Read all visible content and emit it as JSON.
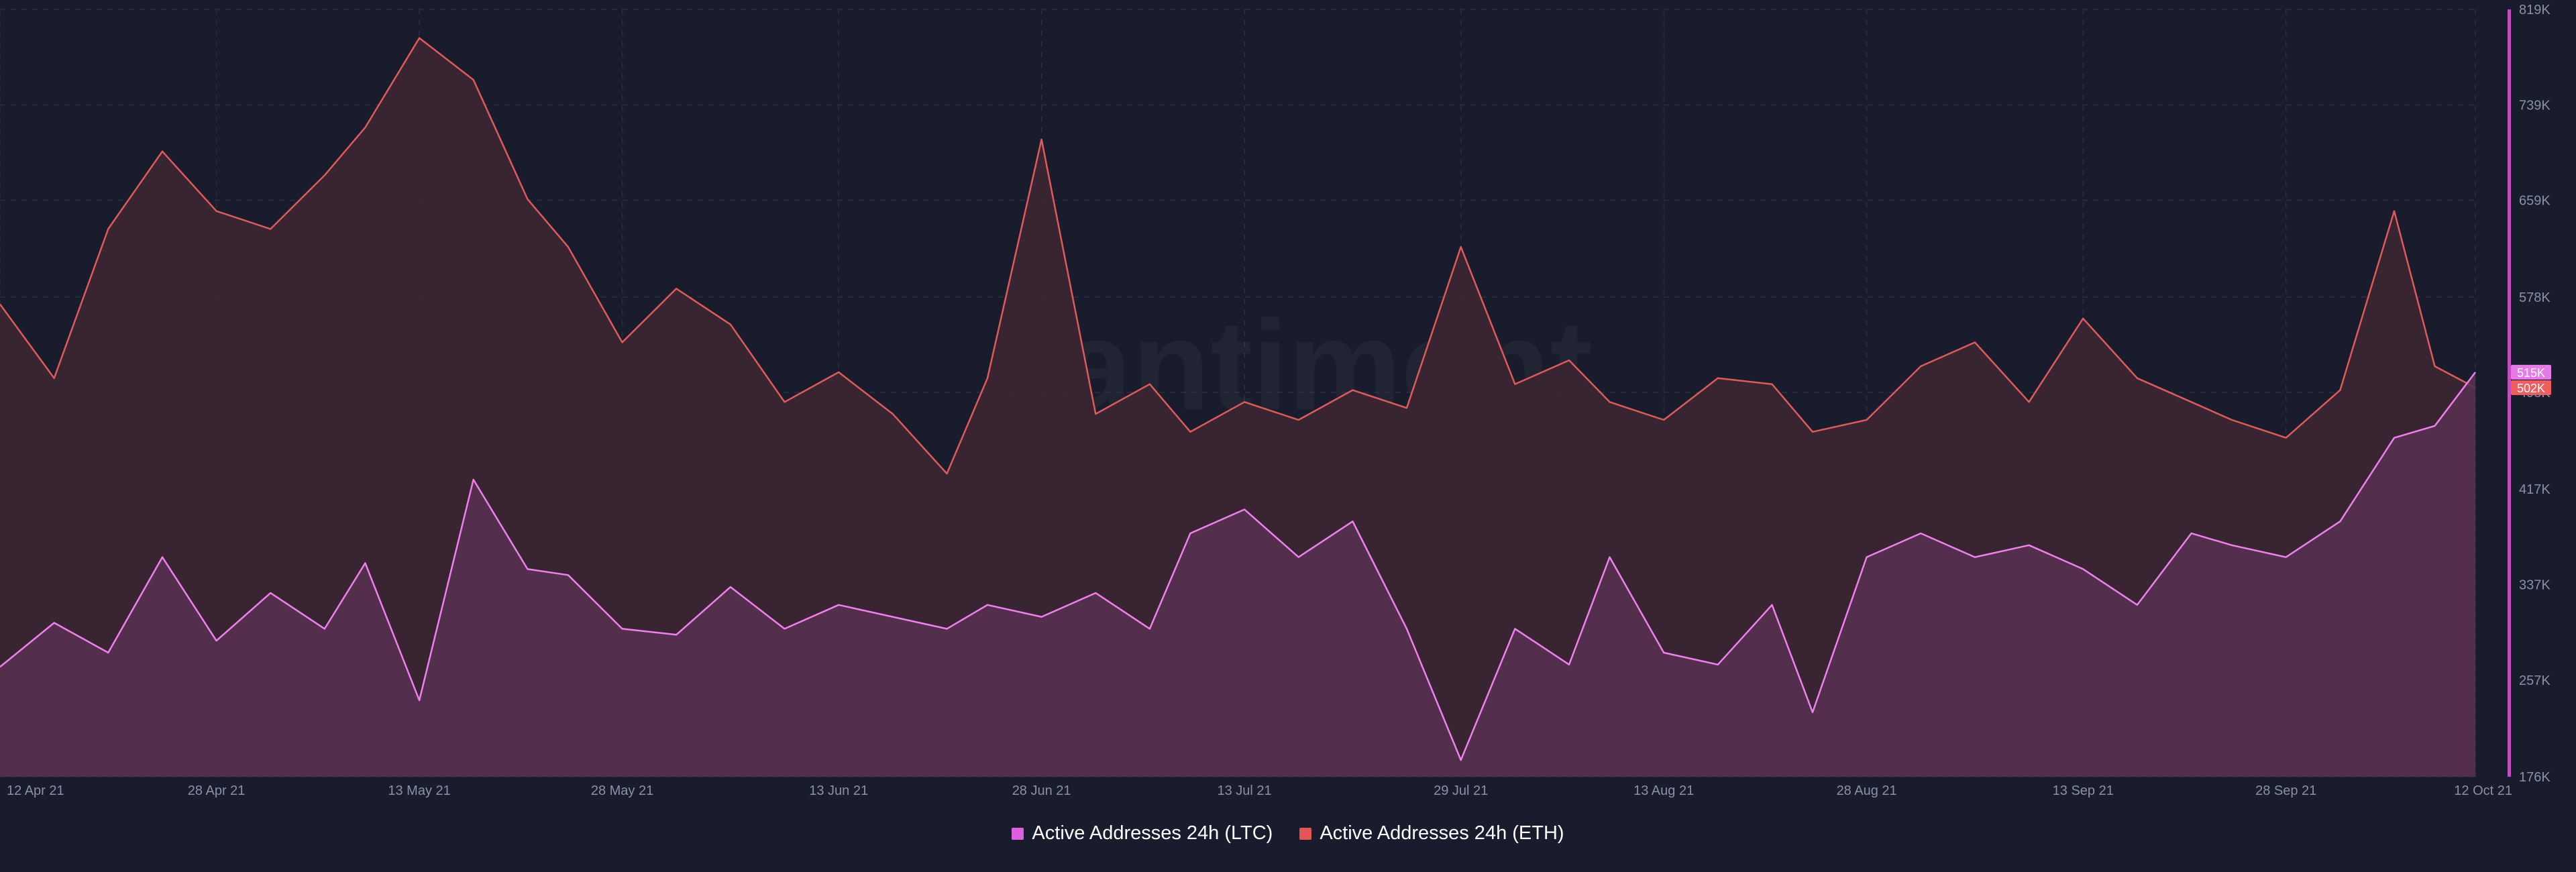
{
  "chart_data": {
    "type": "area",
    "title": "",
    "watermark": "santiment",
    "xlabel": "",
    "ylabel": "",
    "ylim": [
      176000,
      819000
    ],
    "y_ticks": [
      {
        "value": 176000,
        "label": "176K"
      },
      {
        "value": 257000,
        "label": "257K"
      },
      {
        "value": 337000,
        "label": "337K"
      },
      {
        "value": 417000,
        "label": "417K"
      },
      {
        "value": 498000,
        "label": "498K"
      },
      {
        "value": 578000,
        "label": "578K"
      },
      {
        "value": 659000,
        "label": "659K"
      },
      {
        "value": 739000,
        "label": "739K"
      },
      {
        "value": 819000,
        "label": "819K"
      }
    ],
    "x_ticks": [
      "12 Apr 21",
      "28 Apr 21",
      "13 May 21",
      "28 May 21",
      "13 Jun 21",
      "28 Jun 21",
      "13 Jul 21",
      "29 Jul 21",
      "13 Aug 21",
      "28 Aug 21",
      "13 Sep 21",
      "28 Sep 21",
      "12 Oct 21"
    ],
    "last_value_badges": [
      {
        "series": "Active Addresses 24h (LTC)",
        "label": "515K",
        "color": "#e879e8"
      },
      {
        "series": "Active Addresses 24h (ETH)",
        "label": "502K",
        "color": "#f25c5c"
      }
    ],
    "grid": true,
    "legend_position": "bottom-center",
    "series": [
      {
        "name": "Active Addresses 24h (ETH)",
        "color": "#e05a5a",
        "fill": "#3b2533",
        "x": [
          "12 Apr 21",
          "16 Apr 21",
          "20 Apr 21",
          "24 Apr 21",
          "28 Apr 21",
          "2 May 21",
          "6 May 21",
          "9 May 21",
          "13 May 21",
          "17 May 21",
          "21 May 21",
          "24 May 21",
          "28 May 21",
          "1 Jun 21",
          "5 Jun 21",
          "9 Jun 21",
          "13 Jun 21",
          "17 Jun 21",
          "21 Jun 21",
          "24 Jun 21",
          "28 Jun 21",
          "2 Jul 21",
          "6 Jul 21",
          "9 Jul 21",
          "13 Jul 21",
          "17 Jul 21",
          "21 Jul 21",
          "25 Jul 21",
          "29 Jul 21",
          "2 Aug 21",
          "6 Aug 21",
          "9 Aug 21",
          "13 Aug 21",
          "17 Aug 21",
          "21 Aug 21",
          "24 Aug 21",
          "28 Aug 21",
          "1 Sep 21",
          "5 Sep 21",
          "9 Sep 21",
          "13 Sep 21",
          "17 Sep 21",
          "21 Sep 21",
          "24 Sep 21",
          "28 Sep 21",
          "2 Oct 21",
          "6 Oct 21",
          "9 Oct 21",
          "12 Oct 21"
        ],
        "values": [
          572000,
          510000,
          635000,
          700000,
          650000,
          635000,
          680000,
          720000,
          795000,
          760000,
          660000,
          620000,
          540000,
          585000,
          555000,
          490000,
          515000,
          480000,
          430000,
          510000,
          710000,
          480000,
          505000,
          465000,
          490000,
          475000,
          500000,
          485000,
          620000,
          505000,
          525000,
          490000,
          475000,
          510000,
          505000,
          465000,
          475000,
          520000,
          540000,
          490000,
          560000,
          510000,
          490000,
          475000,
          460000,
          500000,
          650000,
          520000,
          502000
        ]
      },
      {
        "name": "Active Addresses 24h (LTC)",
        "color": "#f07ff0",
        "fill": "#573150",
        "x": [
          "12 Apr 21",
          "16 Apr 21",
          "20 Apr 21",
          "24 Apr 21",
          "28 Apr 21",
          "2 May 21",
          "6 May 21",
          "9 May 21",
          "13 May 21",
          "17 May 21",
          "21 May 21",
          "24 May 21",
          "28 May 21",
          "1 Jun 21",
          "5 Jun 21",
          "9 Jun 21",
          "13 Jun 21",
          "17 Jun 21",
          "21 Jun 21",
          "24 Jun 21",
          "28 Jun 21",
          "2 Jul 21",
          "6 Jul 21",
          "9 Jul 21",
          "13 Jul 21",
          "17 Jul 21",
          "21 Jul 21",
          "25 Jul 21",
          "29 Jul 21",
          "2 Aug 21",
          "6 Aug 21",
          "9 Aug 21",
          "13 Aug 21",
          "17 Aug 21",
          "21 Aug 21",
          "24 Aug 21",
          "28 Aug 21",
          "1 Sep 21",
          "5 Sep 21",
          "9 Sep 21",
          "13 Sep 21",
          "17 Sep 21",
          "21 Sep 21",
          "24 Sep 21",
          "28 Sep 21",
          "2 Oct 21",
          "6 Oct 21",
          "9 Oct 21",
          "12 Oct 21"
        ],
        "values": [
          268000,
          305000,
          280000,
          360000,
          290000,
          330000,
          300000,
          355000,
          240000,
          425000,
          350000,
          345000,
          300000,
          295000,
          335000,
          300000,
          320000,
          310000,
          300000,
          320000,
          310000,
          330000,
          300000,
          380000,
          400000,
          360000,
          390000,
          300000,
          190000,
          300000,
          270000,
          360000,
          280000,
          270000,
          320000,
          230000,
          360000,
          380000,
          360000,
          370000,
          350000,
          320000,
          380000,
          370000,
          360000,
          390000,
          460000,
          470000,
          515000
        ]
      }
    ]
  },
  "legend": {
    "items": [
      {
        "label": "Active Addresses 24h (LTC)",
        "color": "#e05fe0"
      },
      {
        "label": "Active Addresses 24h (ETH)",
        "color": "#e65555"
      }
    ]
  }
}
